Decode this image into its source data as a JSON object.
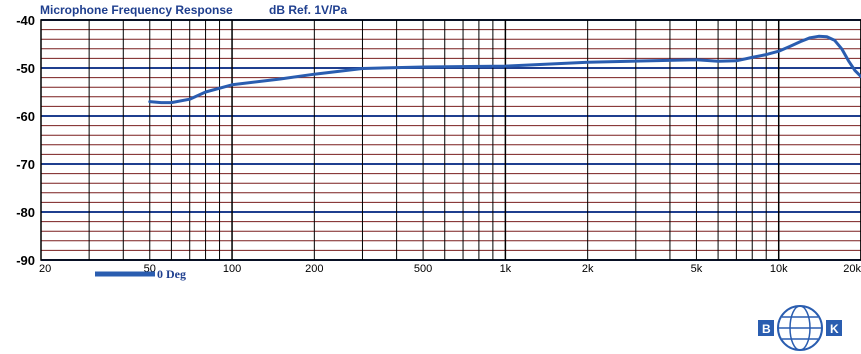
{
  "chart_data": {
    "type": "line",
    "title": "Microphone Frequency Response",
    "ylabel": "dB Ref. 1V/Pa",
    "x_scale": "log",
    "xlim": [
      20,
      20000
    ],
    "ylim": [
      -90,
      -40
    ],
    "y_ticks": [
      -40,
      -50,
      -60,
      -70,
      -80,
      -90
    ],
    "x_ticks": [
      {
        "value": 20,
        "label": "20"
      },
      {
        "value": 50,
        "label": "50"
      },
      {
        "value": 100,
        "label": "100"
      },
      {
        "value": 200,
        "label": "200"
      },
      {
        "value": 500,
        "label": "500"
      },
      {
        "value": 1000,
        "label": "1k"
      },
      {
        "value": 2000,
        "label": "2k"
      },
      {
        "value": 5000,
        "label": "5k"
      },
      {
        "value": 10000,
        "label": "10k"
      },
      {
        "value": 20000,
        "label": "20k"
      }
    ],
    "grid": true,
    "legend_position": "bottom-left",
    "series": [
      {
        "name": "0 Deg",
        "color": "#2a5db0",
        "x": [
          50,
          55,
          60,
          70,
          80,
          100,
          150,
          200,
          300,
          500,
          1000,
          2000,
          5000,
          6000,
          7000,
          8000,
          9000,
          10000,
          11000,
          12000,
          13000,
          14000,
          15000,
          16000,
          17000,
          18000,
          19000,
          20000
        ],
        "y": [
          -57,
          -57.2,
          -57.2,
          -56.5,
          -55,
          -53.5,
          -52.3,
          -51.3,
          -50.1,
          -49.8,
          -49.6,
          -48.8,
          -48.3,
          -48.6,
          -48.5,
          -47.8,
          -47.2,
          -46.5,
          -45.5,
          -44.5,
          -43.7,
          -43.4,
          -43.5,
          -44.2,
          -46,
          -48.5,
          -50.5,
          -51.8
        ]
      }
    ],
    "grid_color": "#7a1f1f",
    "plot_background": "#ffffff"
  },
  "logo": {
    "left_letter": "B",
    "right_letter": "K",
    "color": "#2a5db0"
  }
}
